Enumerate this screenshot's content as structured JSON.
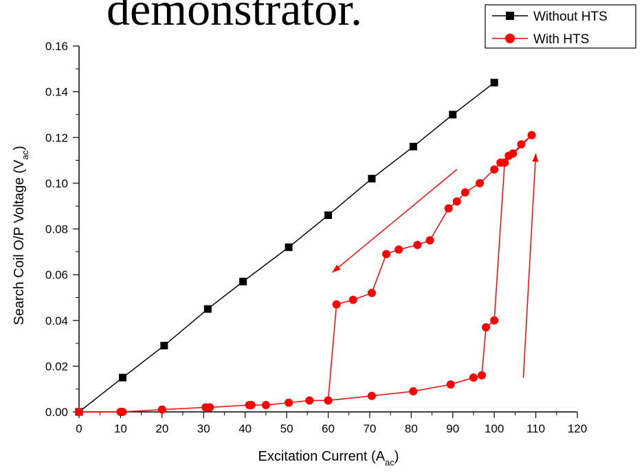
{
  "header": {
    "title_fragment": "demonstrator."
  },
  "chart_data": {
    "type": "line",
    "title": "",
    "xlabel": "Excitation Current (A",
    "xlabel_sub": "ac",
    "xlabel_close": ")",
    "ylabel": "Search Coil O/P Voltage (V",
    "ylabel_sub": "ac",
    "ylabel_close": ")",
    "xlim": [
      0,
      120
    ],
    "ylim": [
      0.0,
      0.16
    ],
    "x_ticks": [
      0,
      10,
      20,
      30,
      40,
      50,
      60,
      70,
      80,
      90,
      100,
      110,
      120
    ],
    "x_tick_labels": [
      "0",
      "10",
      "20",
      "30",
      "40",
      "50",
      "60",
      "70",
      "80",
      "90",
      "100",
      "110",
      "120"
    ],
    "y_ticks": [
      0.0,
      0.02,
      0.04,
      0.06,
      0.08,
      0.1,
      0.12,
      0.14,
      0.16
    ],
    "y_tick_labels": [
      "0.00",
      "0.02",
      "0.04",
      "0.06",
      "0.08",
      "0.10",
      "0.12",
      "0.14",
      "0.16"
    ],
    "grid": false,
    "legend_position": "top-right",
    "series": [
      {
        "name": "Without HTS",
        "color": "#000000",
        "marker": "square",
        "points": [
          [
            0,
            0.0
          ],
          [
            10.5,
            0.015
          ],
          [
            20.5,
            0.029
          ],
          [
            31,
            0.045
          ],
          [
            39.5,
            0.057
          ],
          [
            50.5,
            0.072
          ],
          [
            60,
            0.086
          ],
          [
            70.5,
            0.102
          ],
          [
            80.5,
            0.116
          ],
          [
            90,
            0.13
          ],
          [
            100,
            0.144
          ]
        ]
      },
      {
        "name": "With HTS",
        "color": "#ff0000",
        "marker": "circle",
        "points": [
          [
            0,
            0.0
          ],
          [
            10,
            0.0
          ],
          [
            10.5,
            0.0
          ],
          [
            20,
            0.001
          ],
          [
            30.5,
            0.002
          ],
          [
            31.5,
            0.002
          ],
          [
            41,
            0.003
          ],
          [
            41.5,
            0.003
          ],
          [
            45,
            0.003
          ],
          [
            50.5,
            0.004
          ],
          [
            55.5,
            0.005
          ],
          [
            60,
            0.005
          ],
          [
            70.5,
            0.007
          ],
          [
            80.5,
            0.009
          ],
          [
            89.5,
            0.012
          ],
          [
            95,
            0.015
          ],
          [
            97,
            0.016
          ],
          [
            98,
            0.037
          ],
          [
            100,
            0.04
          ],
          [
            102.5,
            0.109
          ],
          [
            103.5,
            0.112
          ],
          [
            104.5,
            0.113
          ],
          [
            106.5,
            0.117
          ],
          [
            109,
            0.121
          ],
          [
            102.5,
            0.109
          ],
          [
            101.5,
            0.109
          ],
          [
            100,
            0.106
          ],
          [
            96.5,
            0.1
          ],
          [
            93,
            0.096
          ],
          [
            91,
            0.092
          ],
          [
            89,
            0.089
          ],
          [
            84.5,
            0.075
          ],
          [
            81.5,
            0.073
          ],
          [
            77,
            0.071
          ],
          [
            74,
            0.069
          ],
          [
            70.5,
            0.052
          ],
          [
            66,
            0.049
          ],
          [
            62,
            0.047
          ],
          [
            60,
            0.005
          ]
        ]
      }
    ],
    "annotations": [
      {
        "type": "arrow",
        "direction": "down-left",
        "from": [
          91,
          0.106
        ],
        "to": [
          61,
          0.061
        ]
      },
      {
        "type": "arrow",
        "direction": "up",
        "from": [
          107,
          0.015
        ],
        "to": [
          110,
          0.113
        ]
      }
    ]
  }
}
